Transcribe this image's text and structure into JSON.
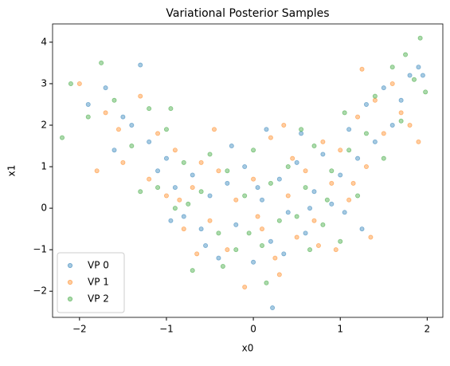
{
  "chart_data": {
    "type": "scatter",
    "title": "Variational Posterior Samples",
    "x_label": "x0",
    "y_label": "x1",
    "xlim": [
      -2.31,
      2.18
    ],
    "ylim": [
      -2.63,
      4.44
    ],
    "xticks": [
      {
        "value": -2,
        "label": "−2"
      },
      {
        "value": -1,
        "label": "−1"
      },
      0,
      1,
      2
    ],
    "yticks": [
      {
        "value": -2,
        "label": "−2"
      },
      {
        "value": -1,
        "label": "−1"
      },
      0,
      1,
      2,
      3,
      4
    ],
    "legend": "lower left",
    "series": [
      {
        "name": "VP 0",
        "color": "#1f77b4",
        "x": [
          -1.9,
          -1.7,
          -1.5,
          -1.3,
          -1.2,
          -1.1,
          -1.0,
          -0.9,
          -0.8,
          -0.7,
          -0.6,
          -0.5,
          -0.4,
          -0.3,
          -0.2,
          -0.1,
          0.0,
          0.1,
          0.2,
          0.22,
          0.3,
          0.4,
          0.5,
          0.6,
          0.7,
          0.8,
          0.9,
          1.0,
          1.1,
          1.2,
          1.3,
          1.4,
          1.5,
          1.6,
          1.7,
          1.8,
          1.9,
          1.95,
          -1.4,
          -0.95,
          -0.55,
          0.05,
          0.35,
          0.65,
          1.05,
          1.25,
          -1.6,
          0.55,
          -0.25,
          0.15
        ],
        "values": [
          2.5,
          2.9,
          2.2,
          3.45,
          1.6,
          0.9,
          1.2,
          0.5,
          -0.2,
          0.8,
          -0.5,
          0.3,
          -1.2,
          0.6,
          -0.4,
          1.0,
          -1.3,
          0.2,
          -0.8,
          -2.4,
          0.7,
          -0.1,
          1.1,
          -0.6,
          0.4,
          1.3,
          0.1,
          0.8,
          1.9,
          1.2,
          2.5,
          1.6,
          2.9,
          2.0,
          2.6,
          3.2,
          3.4,
          3.2,
          2.0,
          -0.3,
          -0.9,
          0.5,
          -1.1,
          0.0,
          -0.1,
          -0.5,
          1.4,
          1.8,
          1.5,
          1.9
        ]
      },
      {
        "name": "VP 1",
        "color": "#ff7f0e",
        "x": [
          -2.0,
          -1.8,
          -1.7,
          -1.5,
          -1.3,
          -1.1,
          -1.0,
          -0.9,
          -0.8,
          -0.7,
          -0.6,
          -0.5,
          -0.4,
          -0.3,
          -0.2,
          -0.1,
          0.0,
          0.1,
          0.2,
          0.3,
          0.4,
          0.5,
          0.6,
          0.7,
          0.8,
          0.9,
          1.0,
          1.1,
          1.2,
          1.25,
          1.3,
          1.4,
          1.5,
          1.6,
          1.7,
          1.8,
          1.9,
          -1.2,
          -0.85,
          -0.45,
          0.05,
          0.25,
          0.45,
          0.75,
          0.95,
          1.15,
          -0.65,
          0.35,
          -1.55,
          1.35
        ],
        "values": [
          3.0,
          0.9,
          2.3,
          1.1,
          2.7,
          1.8,
          0.3,
          1.4,
          -0.5,
          0.5,
          1.1,
          -0.3,
          0.9,
          -1.0,
          0.2,
          -1.9,
          0.7,
          -0.5,
          1.7,
          -1.6,
          0.3,
          -0.7,
          0.9,
          -0.3,
          1.6,
          0.6,
          1.4,
          0.2,
          2.2,
          3.35,
          1.0,
          2.6,
          1.8,
          3.0,
          2.3,
          2.0,
          1.6,
          0.7,
          0.2,
          1.9,
          -0.2,
          -1.2,
          1.2,
          -0.9,
          -1.0,
          0.6,
          -1.1,
          2.0,
          1.9,
          -0.7
        ]
      },
      {
        "name": "VP 2",
        "color": "#2ca02c",
        "x": [
          -2.2,
          -2.1,
          -1.9,
          -1.75,
          -1.6,
          -1.4,
          -1.2,
          -1.1,
          -1.0,
          -0.9,
          -0.8,
          -0.7,
          -0.6,
          -0.5,
          -0.4,
          -0.3,
          -0.2,
          -0.1,
          0.0,
          0.1,
          0.2,
          0.3,
          0.4,
          0.5,
          0.6,
          0.7,
          0.8,
          0.9,
          1.0,
          1.1,
          1.2,
          1.3,
          1.4,
          1.5,
          1.6,
          1.7,
          1.75,
          1.85,
          1.92,
          1.98,
          -1.3,
          -0.95,
          -0.35,
          0.15,
          0.55,
          0.85,
          1.05,
          -0.05,
          0.65,
          -0.75
        ],
        "values": [
          1.7,
          3.0,
          2.2,
          3.5,
          2.6,
          1.5,
          2.4,
          0.5,
          1.9,
          0.0,
          1.1,
          -1.5,
          0.4,
          1.3,
          -0.6,
          0.9,
          -1.0,
          0.3,
          1.4,
          -0.9,
          0.6,
          -0.3,
          1.0,
          -0.2,
          0.5,
          1.5,
          -0.4,
          0.9,
          -0.8,
          1.4,
          0.3,
          1.8,
          2.7,
          1.2,
          3.4,
          2.1,
          3.7,
          3.1,
          4.1,
          2.8,
          0.4,
          2.4,
          -1.4,
          -1.8,
          1.9,
          0.2,
          2.3,
          -0.6,
          -1.0,
          0.1
        ]
      }
    ]
  }
}
